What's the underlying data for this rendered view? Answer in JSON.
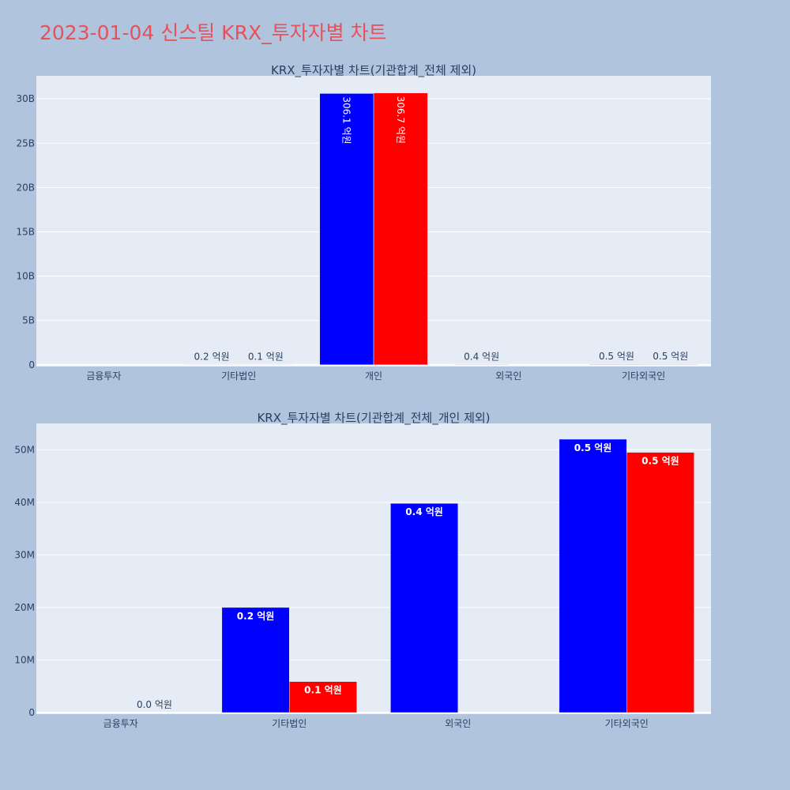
{
  "page": {
    "title": "2023-01-04 신스틸 KRX_투자자별 차트",
    "background": "#b0c4de",
    "title_color": "#e8505b"
  },
  "chart_data": [
    {
      "type": "bar",
      "title": "KRX_투자자별 차트(기관합계_전체 제외)",
      "categories": [
        "금융투자",
        "기타법인",
        "개인",
        "외국인",
        "기타외국인"
      ],
      "series": [
        {
          "color": "#0000ff",
          "values": [
            0,
            20000000,
            30610000000,
            40000000,
            52000000
          ]
        },
        {
          "color": "#ff0000",
          "values": [
            0,
            6000000,
            30670000000,
            0,
            49500000
          ]
        }
      ],
      "data_labels": [
        [
          "",
          "0.2 억원",
          "306.1 억원",
          "0.4 억원",
          "0.5 억원"
        ],
        [
          "",
          "0.1 억원",
          "306.7 억원",
          "",
          "0.5 억원"
        ]
      ],
      "yticks": [
        0,
        5000000000,
        10000000000,
        15000000000,
        20000000000,
        25000000000,
        30000000000
      ],
      "ytick_labels": [
        "0",
        "5B",
        "10B",
        "15B",
        "20B",
        "25B",
        "30B"
      ],
      "ylim": [
        -200000000,
        32600000000
      ],
      "plot_bg": "#e5ecf6",
      "grid": true,
      "xlabel": "",
      "ylabel": ""
    },
    {
      "type": "bar",
      "title": "KRX_투자자별 차트(기관합계_전체_개인 제외)",
      "categories": [
        "금융투자",
        "기타법인",
        "외국인",
        "기타외국인"
      ],
      "series": [
        {
          "color": "#0000ff",
          "values": [
            0,
            20000000,
            39800000,
            52000000
          ]
        },
        {
          "color": "#ff0000",
          "values": [
            0,
            5900000,
            0,
            49500000
          ]
        }
      ],
      "data_labels": [
        [
          "",
          "0.2 억원",
          "0.4 억원",
          "0.5 억원"
        ],
        [
          "0.0 억원",
          "0.1 억원",
          "",
          "0.5 억원"
        ]
      ],
      "yticks": [
        0,
        10000000,
        20000000,
        30000000,
        40000000,
        50000000
      ],
      "ytick_labels": [
        "0",
        "10M",
        "20M",
        "30M",
        "40M",
        "50M"
      ],
      "ylim": [
        -300000,
        55000000
      ],
      "plot_bg": "#e5ecf6",
      "grid": true,
      "xlabel": "",
      "ylabel": ""
    }
  ]
}
